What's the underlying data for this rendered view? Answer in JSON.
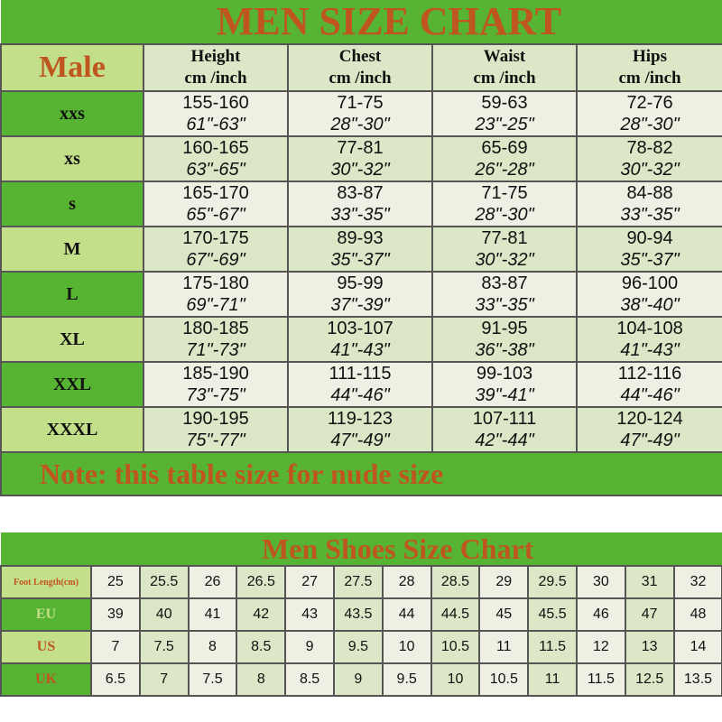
{
  "size_chart": {
    "title": "MEN SIZE  CHART",
    "corner_label": "Male",
    "columns": [
      {
        "name": "Height",
        "unit": "cm /inch"
      },
      {
        "name": "Chest",
        "unit": "cm /inch"
      },
      {
        "name": "Waist",
        "unit": "cm /inch"
      },
      {
        "name": "Hips",
        "unit": "cm /inch"
      }
    ],
    "rows": [
      {
        "size": "xxs",
        "cells": [
          [
            "155-160",
            "61\"-63\""
          ],
          [
            "71-75",
            "28\"-30\""
          ],
          [
            "59-63",
            "23\"-25\""
          ],
          [
            "72-76",
            "28\"-30\""
          ]
        ]
      },
      {
        "size": "xs",
        "cells": [
          [
            "160-165",
            "63\"-65\""
          ],
          [
            "77-81",
            "30\"-32\""
          ],
          [
            "65-69",
            "26\"-28\""
          ],
          [
            "78-82",
            "30\"-32\""
          ]
        ]
      },
      {
        "size": "s",
        "cells": [
          [
            "165-170",
            "65\"-67\""
          ],
          [
            "83-87",
            "33\"-35\""
          ],
          [
            "71-75",
            "28\"-30\""
          ],
          [
            "84-88",
            "33\"-35\""
          ]
        ]
      },
      {
        "size": "M",
        "cells": [
          [
            "170-175",
            "67\"-69\""
          ],
          [
            "89-93",
            "35\"-37\""
          ],
          [
            "77-81",
            "30\"-32\""
          ],
          [
            "90-94",
            "35\"-37\""
          ]
        ]
      },
      {
        "size": "L",
        "cells": [
          [
            "175-180",
            "69\"-71\""
          ],
          [
            "95-99",
            "37\"-39\""
          ],
          [
            "83-87",
            "33\"-35\""
          ],
          [
            "96-100",
            "38\"-40\""
          ]
        ]
      },
      {
        "size": "XL",
        "cells": [
          [
            "180-185",
            "71\"-73\""
          ],
          [
            "103-107",
            "41\"-43\""
          ],
          [
            "91-95",
            "36\"-38\""
          ],
          [
            "104-108",
            "41\"-43\""
          ]
        ]
      },
      {
        "size": "XXL",
        "cells": [
          [
            "185-190",
            "73\"-75\""
          ],
          [
            "111-115",
            "44\"-46\""
          ],
          [
            "99-103",
            "39\"-41\""
          ],
          [
            "112-116",
            "44\"-46\""
          ]
        ]
      },
      {
        "size": "XXXL",
        "cells": [
          [
            "190-195",
            "75\"-77\""
          ],
          [
            "119-123",
            "47\"-49\""
          ],
          [
            "107-111",
            "42\"-44\""
          ],
          [
            "120-124",
            "47\"-49\""
          ]
        ]
      }
    ],
    "note": "Note: this table size for nude size"
  },
  "shoe_chart": {
    "title": "Men Shoes Size Chart",
    "rows": [
      {
        "label": "Foot Length(cm)",
        "values": [
          "25",
          "25.5",
          "26",
          "26.5",
          "27",
          "27.5",
          "28",
          "28.5",
          "29",
          "29.5",
          "30",
          "31",
          "32"
        ]
      },
      {
        "label": "EU",
        "values": [
          "39",
          "40",
          "41",
          "42",
          "43",
          "43.5",
          "44",
          "44.5",
          "45",
          "45.5",
          "46",
          "47",
          "48"
        ]
      },
      {
        "label": "US",
        "values": [
          "7",
          "7.5",
          "8",
          "8.5",
          "9",
          "9.5",
          "10",
          "10.5",
          "11",
          "11.5",
          "12",
          "13",
          "14"
        ]
      },
      {
        "label": "UK",
        "values": [
          "6.5",
          "7",
          "7.5",
          "8",
          "8.5",
          "9",
          "9.5",
          "10",
          "10.5",
          "11",
          "11.5",
          "12.5",
          "13.5"
        ]
      }
    ]
  },
  "colors": {
    "dark_green": "#56b432",
    "light_green": "#c3df89",
    "cream": "#f0efe3",
    "pale_green": "#dbe7c6",
    "title_orange": "#c0561f"
  }
}
